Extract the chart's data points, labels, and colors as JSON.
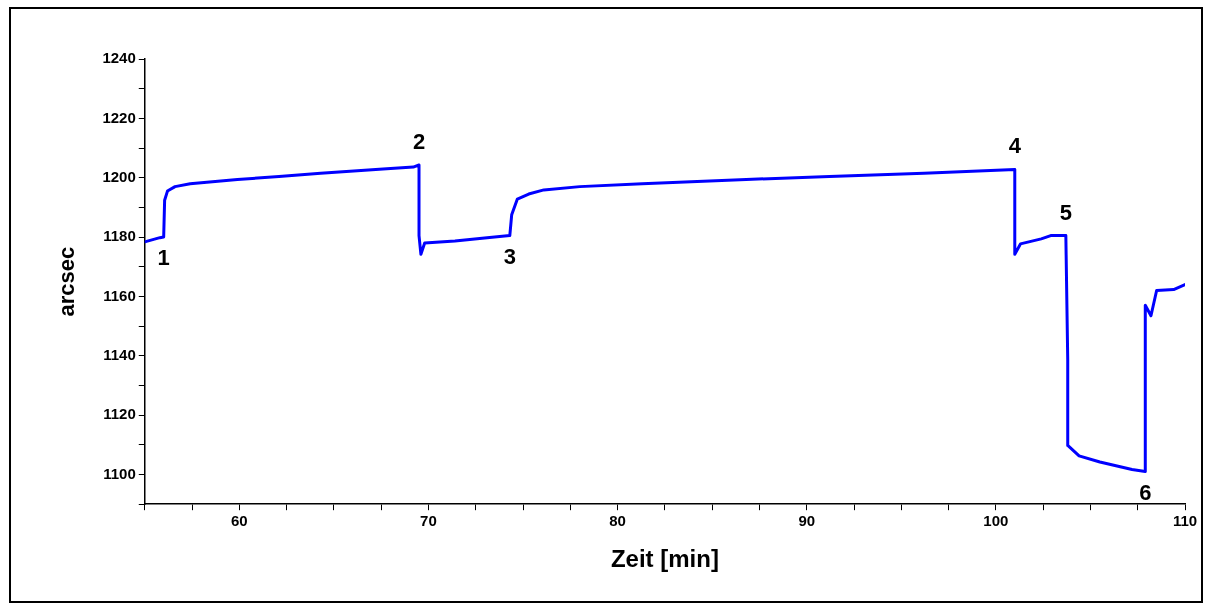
{
  "chart_data": {
    "type": "line",
    "xlabel": "Zeit [min]",
    "ylabel": "arcsec",
    "xlim": [
      55,
      110
    ],
    "ylim": [
      1090,
      1240
    ],
    "xticks": [
      {
        "value": 55,
        "label": null
      },
      {
        "value": 57.5,
        "label": null
      },
      60,
      {
        "value": 62.5,
        "label": null
      },
      {
        "value": 65,
        "label": null
      },
      {
        "value": 67.5,
        "label": null
      },
      70,
      {
        "value": 72.5,
        "label": null
      },
      {
        "value": 75,
        "label": null
      },
      {
        "value": 77.5,
        "label": null
      },
      80,
      {
        "value": 82.5,
        "label": null
      },
      {
        "value": 85,
        "label": null
      },
      {
        "value": 87.5,
        "label": null
      },
      90,
      {
        "value": 92.5,
        "label": null
      },
      {
        "value": 95,
        "label": null
      },
      {
        "value": 97.5,
        "label": null
      },
      100,
      {
        "value": 102.5,
        "label": null
      },
      {
        "value": 105,
        "label": null
      },
      {
        "value": 107.5,
        "label": null
      },
      110
    ],
    "yticks": [
      {
        "value": 1090,
        "label": null
      },
      1100,
      {
        "value": 1110,
        "label": null
      },
      1120,
      {
        "value": 1130,
        "label": null
      },
      1140,
      {
        "value": 1150,
        "label": null
      },
      1160,
      {
        "value": 1170,
        "label": null
      },
      1180,
      {
        "value": 1190,
        "label": null
      },
      1200,
      {
        "value": 1210,
        "label": null
      },
      1220,
      {
        "value": 1230,
        "label": null
      },
      1240
    ],
    "grid": false,
    "legend": false,
    "marker": "none",
    "line_style": "solid",
    "series": [
      {
        "color": "#0000ff",
        "x": [
          55,
          55.8,
          56,
          56.05,
          56.2,
          56.6,
          57.4,
          59.9,
          62.1,
          64.3,
          67.6,
          69.2,
          69.5,
          69.5,
          69.6,
          69.8,
          71.4,
          73.1,
          74.3,
          74.4,
          74.7,
          75.3,
          76.1,
          78,
          81.3,
          86.8,
          91.2,
          96.2,
          101,
          101,
          101.3,
          102.4,
          102.9,
          103.7,
          103.8,
          103.8,
          104.4,
          105.5,
          107.2,
          107.9,
          107.9,
          108.2,
          108.5,
          109.4,
          110
        ],
        "values": [
          1178.4,
          1179.8,
          1180,
          1192.4,
          1195.5,
          1197,
          1198,
          1199.4,
          1200.4,
          1201.5,
          1202.9,
          1203.6,
          1204.3,
          1180.5,
          1174.2,
          1178,
          1178.7,
          1179.8,
          1180.5,
          1187.5,
          1192.8,
          1194.5,
          1195.9,
          1197,
          1198,
          1199.4,
          1200.4,
          1201.5,
          1202.8,
          1174.2,
          1177.7,
          1179.4,
          1180.5,
          1180.5,
          1138.5,
          1109.8,
          1106.3,
          1104.2,
          1101.7,
          1101,
          1157,
          1153.5,
          1162,
          1162.3,
          1164
        ]
      }
    ],
    "annotations": [
      {
        "text": "1",
        "x": 56,
        "y": 1180
      },
      {
        "text": "2",
        "x": 69.5,
        "y": 1204.3
      },
      {
        "text": "3",
        "x": 74.3,
        "y": 1180.5
      },
      {
        "text": "4",
        "x": 101,
        "y": 1202.8
      },
      {
        "text": "5",
        "x": 103.7,
        "y": 1180.5
      },
      {
        "text": "6",
        "x": 107.9,
        "y": 1101
      }
    ]
  }
}
